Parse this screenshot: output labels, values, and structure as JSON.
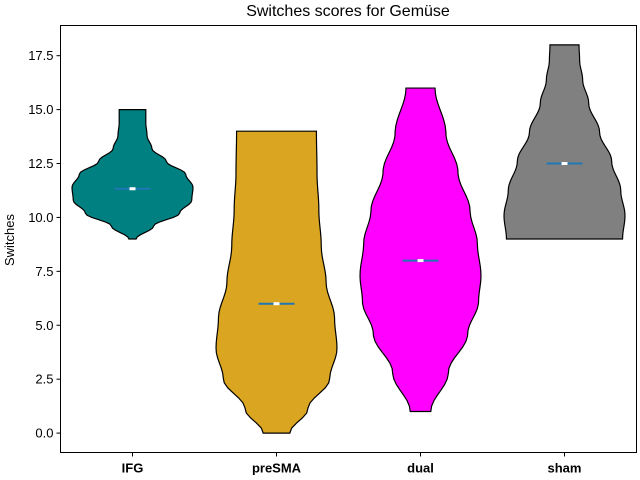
{
  "chart_data": {
    "type": "violin",
    "title": "Switches scores for Gemüse",
    "xlabel": "",
    "ylabel": "Switches",
    "ylim": [
      -0.9,
      18.9
    ],
    "yticks": [
      0.0,
      2.5,
      5.0,
      7.5,
      10.0,
      12.5,
      15.0,
      17.5
    ],
    "ytick_labels": [
      "0.0",
      "2.5",
      "5.0",
      "7.5",
      "10.0",
      "12.5",
      "15.0",
      "17.5"
    ],
    "categories": [
      "IFG",
      "preSMA",
      "dual",
      "sham"
    ],
    "grid": false,
    "series": [
      {
        "category": "IFG",
        "color": "#008080",
        "min": 9,
        "max": 15,
        "mean": 11.33,
        "median": 11.33
      },
      {
        "category": "preSMA",
        "color": "#DAA520",
        "min": 0,
        "max": 14,
        "mean": 6.0,
        "median": 6.0
      },
      {
        "category": "dual",
        "color": "#FF00FF",
        "min": 1,
        "max": 16,
        "mean": 8.0,
        "median": 8.0
      },
      {
        "category": "sham",
        "color": "#808080",
        "min": 9,
        "max": 18,
        "mean": 12.5,
        "median": 12.5
      }
    ],
    "mean_line_color": "#1f77b4",
    "median_marker_color": "#ffffff"
  }
}
